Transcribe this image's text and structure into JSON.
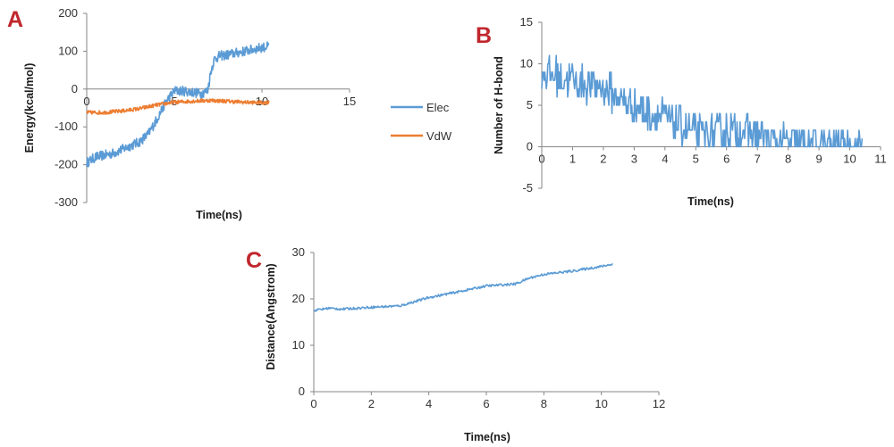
{
  "panels": {
    "a": {
      "letter": "A"
    },
    "b": {
      "letter": "B"
    },
    "c": {
      "letter": "C"
    }
  },
  "chart_data": [
    {
      "id": "A",
      "type": "line",
      "xlabel": "Time(ns)",
      "ylabel": "Energy(kcal/mol)",
      "xlim": [
        0,
        15
      ],
      "ylim": [
        -300,
        200
      ],
      "x_ticks": [
        0,
        5,
        10,
        15
      ],
      "y_ticks": [
        -300,
        -200,
        -100,
        0,
        100,
        200
      ],
      "grid": false,
      "legend": "right",
      "series": [
        {
          "name": "Elec",
          "color": "#5b9bd5",
          "noise": 13,
          "x": [
            0,
            0.5,
            1,
            1.5,
            2,
            2.5,
            3,
            3.5,
            4,
            4.5,
            5,
            5.5,
            6,
            6.5,
            6.9,
            7.1,
            7.3,
            7.6,
            8,
            8.5,
            9,
            9.5,
            10,
            10.4
          ],
          "y": [
            -195,
            -180,
            -175,
            -170,
            -160,
            -150,
            -140,
            -120,
            -80,
            -35,
            -5,
            -5,
            -8,
            -12,
            -5,
            50,
            80,
            88,
            90,
            95,
            100,
            105,
            110,
            112
          ]
        },
        {
          "name": "VdW",
          "color": "#ed7d31",
          "noise": 5,
          "x": [
            0,
            1,
            2,
            3,
            4,
            5,
            6,
            7,
            8,
            9,
            10,
            10.4
          ],
          "y": [
            -62,
            -62,
            -58,
            -52,
            -42,
            -35,
            -32,
            -30,
            -32,
            -35,
            -36,
            -35
          ]
        }
      ]
    },
    {
      "id": "B",
      "type": "line",
      "xlabel": "Time(ns)",
      "ylabel": "Number of H-bond",
      "xlim": [
        0,
        11
      ],
      "ylim": [
        -5,
        15
      ],
      "x_ticks": [
        0,
        1,
        2,
        3,
        4,
        5,
        6,
        7,
        8,
        9,
        10,
        11
      ],
      "y_ticks": [
        -5,
        0,
        5,
        10,
        15
      ],
      "grid": false,
      "series": [
        {
          "name": "",
          "color": "#5b9bd5",
          "noise": 2.2,
          "x": [
            0,
            0.5,
            1,
            1.5,
            2,
            2.5,
            3,
            3.5,
            4,
            4.5,
            5,
            5.5,
            6,
            6.5,
            7,
            7.5,
            8,
            8.5,
            9,
            9.5,
            10,
            10.4
          ],
          "y": [
            9,
            8.5,
            8,
            7.5,
            7,
            6,
            5,
            4,
            3.5,
            2.5,
            1.5,
            1.5,
            2,
            2,
            1.5,
            0.5,
            0.4,
            0.3,
            0.1,
            0,
            0,
            0
          ]
        }
      ]
    },
    {
      "id": "C",
      "type": "line",
      "xlabel": "Time(ns)",
      "ylabel": "Distance(Angstrom)",
      "xlim": [
        0,
        12
      ],
      "ylim": [
        0,
        30
      ],
      "x_ticks": [
        0,
        2,
        4,
        6,
        8,
        10,
        12
      ],
      "y_ticks": [
        0,
        10,
        20,
        30
      ],
      "grid": false,
      "series": [
        {
          "name": "",
          "color": "#5b9bd5",
          "noise": 0.25,
          "x": [
            0,
            0.5,
            1,
            2,
            3,
            4,
            5,
            6,
            7,
            7.5,
            8,
            9,
            10,
            10.4
          ],
          "y": [
            17.5,
            18,
            17.8,
            18.2,
            18.5,
            20.3,
            21.5,
            22.8,
            23.2,
            24.5,
            25.3,
            26,
            27,
            27.5
          ]
        }
      ]
    }
  ]
}
